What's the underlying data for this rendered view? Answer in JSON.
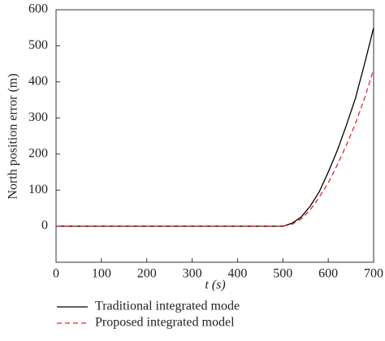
{
  "chart_data": {
    "type": "line",
    "xlabel": "t (s)",
    "ylabel": "North position error (m)",
    "x": [
      0,
      500,
      520,
      540,
      560,
      580,
      600,
      620,
      640,
      660,
      680,
      700
    ],
    "series": [
      {
        "name": "Traditional integrated mode",
        "color": "#000000",
        "dash": "solid",
        "values": [
          0,
          0,
          8,
          25,
          55,
          95,
          150,
          210,
          280,
          355,
          450,
          550
        ]
      },
      {
        "name": "Proposed integrated model",
        "color": "#e8262a",
        "dash": "dashed",
        "values": [
          0,
          0,
          5,
          20,
          45,
          80,
          120,
          170,
          225,
          285,
          355,
          435
        ]
      }
    ],
    "xlim": [
      0,
      700
    ],
    "xticks": [
      0,
      100,
      200,
      300,
      400,
      500,
      600,
      700
    ],
    "ylim": [
      -100,
      600
    ],
    "yticks": [
      0,
      100,
      200,
      300,
      400,
      500,
      600
    ],
    "grid": false,
    "legend": "below"
  }
}
